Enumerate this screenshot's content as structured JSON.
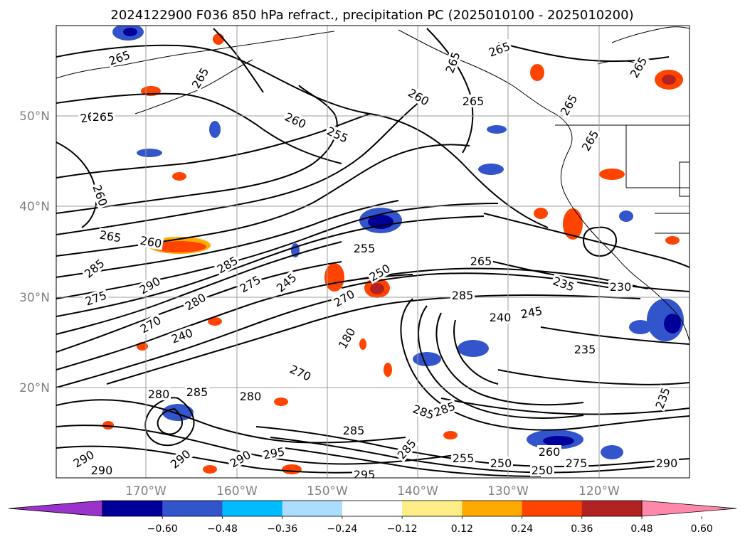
{
  "title": "2024122900 F036 850 hPa refract., precipitation PC (2025010100 - 2025010200)",
  "map": {
    "lat_labels": [
      "50°N",
      "40°N",
      "30°N",
      "20°N"
    ],
    "lon_labels": [
      "170°W",
      "160°W",
      "150°W",
      "140°W",
      "130°W",
      "120°W"
    ]
  },
  "colorbar": {
    "colors": [
      "#9933cc",
      "#000099",
      "#3355cc",
      "#00bbff",
      "#aaddff",
      "#ffffff",
      "#ffee88",
      "#ffaa00",
      "#ff4400",
      "#b22222",
      "#ff88aa"
    ],
    "tick_labels": [
      "−0.60",
      "−0.48",
      "−0.36",
      "−0.24",
      "−0.12",
      "0.12",
      "0.24",
      "0.36",
      "0.48",
      "0.60"
    ],
    "levels": [
      -0.6,
      -0.48,
      -0.36,
      -0.24,
      -0.12,
      0.12,
      0.24,
      0.36,
      0.48,
      0.6
    ]
  },
  "contour_labels": [
    {
      "text": "265",
      "rot": -20
    },
    {
      "text": "265",
      "rot": -10
    },
    {
      "text": "265",
      "rot": 0
    },
    {
      "text": "265",
      "rot": -60
    },
    {
      "text": "260",
      "rot": 25
    },
    {
      "text": "255",
      "rot": 25
    },
    {
      "text": "260",
      "rot": 30
    },
    {
      "text": "265",
      "rot": -70
    },
    {
      "text": "265",
      "rot": -20
    },
    {
      "text": "265",
      "rot": -60
    },
    {
      "text": "265",
      "rot": -60
    },
    {
      "text": "265",
      "rot": -60
    },
    {
      "text": "265",
      "rot": 0
    },
    {
      "text": "260",
      "rot": 70
    },
    {
      "text": "265",
      "rot": 10
    },
    {
      "text": "260",
      "rot": 10
    },
    {
      "text": "255",
      "rot": 0
    },
    {
      "text": "285",
      "rot": -40
    },
    {
      "text": "285",
      "rot": -30
    },
    {
      "text": "275",
      "rot": -20
    },
    {
      "text": "290",
      "rot": -30
    },
    {
      "text": "275",
      "rot": -30
    },
    {
      "text": "245",
      "rot": -40
    },
    {
      "text": "280",
      "rot": -30
    },
    {
      "text": "270",
      "rot": -30
    },
    {
      "text": "240",
      "rot": -20
    },
    {
      "text": "270",
      "rot": -30
    },
    {
      "text": "250",
      "rot": -30
    },
    {
      "text": "265",
      "rot": 0
    },
    {
      "text": "285",
      "rot": 0
    },
    {
      "text": "240",
      "rot": 0
    },
    {
      "text": "245",
      "rot": -10
    },
    {
      "text": "235",
      "rot": 20
    },
    {
      "text": "230",
      "rot": 0
    },
    {
      "text": "235",
      "rot": 0
    },
    {
      "text": "180",
      "rot": -60
    },
    {
      "text": "270",
      "rot": 25
    },
    {
      "text": "280",
      "rot": 0
    },
    {
      "text": "285",
      "rot": 0
    },
    {
      "text": "280",
      "rot": 0
    },
    {
      "text": "285",
      "rot": 20
    },
    {
      "text": "285",
      "rot": -20
    },
    {
      "text": "285",
      "rot": 0
    },
    {
      "text": "235",
      "rot": -70
    },
    {
      "text": "290",
      "rot": -30
    },
    {
      "text": "290",
      "rot": -40
    },
    {
      "text": "290",
      "rot": -30
    },
    {
      "text": "295",
      "rot": -10
    },
    {
      "text": "285",
      "rot": -50
    },
    {
      "text": "255",
      "rot": 0
    },
    {
      "text": "250",
      "rot": 0
    },
    {
      "text": "260",
      "rot": 0
    },
    {
      "text": "275",
      "rot": 0
    },
    {
      "text": "290",
      "rot": 0
    },
    {
      "text": "290",
      "rot": 0
    },
    {
      "text": "295",
      "rot": 0
    },
    {
      "text": "250",
      "rot": 0
    }
  ]
}
